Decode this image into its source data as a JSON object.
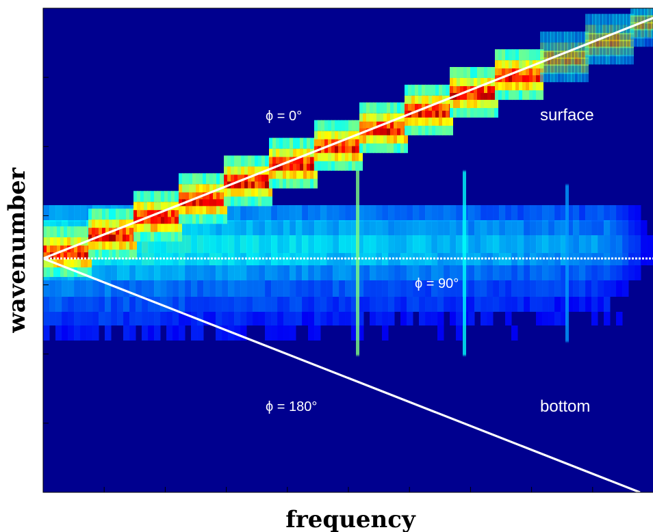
{
  "chart_data": {
    "type": "heatmap",
    "title": "",
    "xlabel": "frequency",
    "ylabel": "wavenumber",
    "colormap": "jet",
    "colors": {
      "background": "#00008f",
      "line": "#ffffff",
      "text": "#ffffff",
      "hot": "#ff1a00",
      "warm": "#ffd200",
      "mid": "#17e8ff",
      "cool": "#1f5cff"
    },
    "grid": false,
    "xticks": 10,
    "yticks": 7,
    "lines": [
      {
        "name": "phi_0",
        "style": "solid",
        "from": [
          0,
          0
        ],
        "to": [
          1,
          1
        ]
      },
      {
        "name": "phi_90",
        "style": "dotted",
        "from": [
          0,
          0
        ],
        "to": [
          1,
          0
        ]
      },
      {
        "name": "phi_180",
        "style": "solid",
        "from": [
          0,
          0
        ],
        "to": [
          1,
          -1
        ]
      }
    ],
    "annotations": [
      {
        "id": "phi0",
        "text": "ϕ = 0°"
      },
      {
        "id": "phi90",
        "text": "ϕ = 90°"
      },
      {
        "id": "phi180",
        "text": "ϕ = 180°"
      },
      {
        "id": "surface",
        "text": "surface"
      },
      {
        "id": "bottom",
        "text": "bottom"
      }
    ]
  }
}
